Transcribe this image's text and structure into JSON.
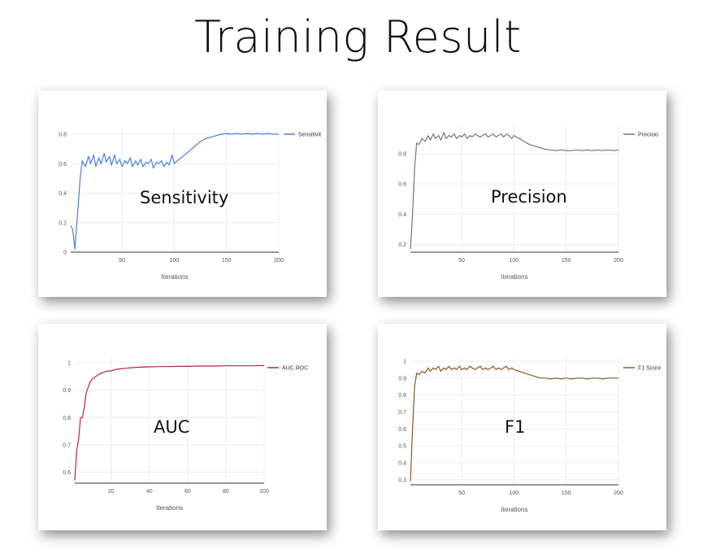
{
  "slide": {
    "title": "Training Result"
  },
  "chart_data": [
    {
      "type": "line",
      "label": "Sensitivity",
      "legend": "Sensitivit",
      "xlabel": "Iterations",
      "ylabel": "",
      "color": "#4a7fe0",
      "xlim": [
        1,
        200
      ],
      "ylim": [
        0,
        0.8
      ],
      "xticks": [
        50,
        100,
        150,
        200
      ],
      "xtick_labels": [
        "50",
        "100",
        "150",
        "200"
      ],
      "yticks": [
        0,
        0.2,
        0.4,
        0.6,
        0.8
      ],
      "ytick_labels": [
        "0",
        "0.2",
        "0.4",
        "0.6",
        "0.8"
      ],
      "x": [
        1,
        3,
        5,
        8,
        10,
        12,
        15,
        18,
        20,
        23,
        25,
        28,
        30,
        33,
        35,
        38,
        40,
        43,
        45,
        48,
        50,
        53,
        55,
        58,
        60,
        63,
        65,
        68,
        70,
        73,
        75,
        78,
        80,
        83,
        85,
        88,
        90,
        93,
        95,
        98,
        100,
        103,
        105,
        110,
        115,
        120,
        125,
        130,
        135,
        140,
        145,
        150,
        155,
        160,
        165,
        170,
        175,
        180,
        185,
        190,
        195,
        200
      ],
      "y": [
        0.18,
        0.15,
        0.02,
        0.3,
        0.5,
        0.62,
        0.58,
        0.65,
        0.6,
        0.66,
        0.58,
        0.64,
        0.6,
        0.67,
        0.61,
        0.65,
        0.59,
        0.66,
        0.6,
        0.63,
        0.58,
        0.62,
        0.6,
        0.64,
        0.58,
        0.62,
        0.59,
        0.63,
        0.58,
        0.61,
        0.6,
        0.63,
        0.57,
        0.61,
        0.6,
        0.62,
        0.58,
        0.61,
        0.59,
        0.66,
        0.6,
        0.62,
        0.63,
        0.66,
        0.69,
        0.72,
        0.75,
        0.77,
        0.78,
        0.79,
        0.8,
        0.805,
        0.8,
        0.805,
        0.8,
        0.805,
        0.8,
        0.805,
        0.8,
        0.805,
        0.8,
        0.8
      ]
    },
    {
      "type": "line",
      "label": "Precision",
      "legend": "Precisio",
      "xlabel": "Iterations",
      "ylabel": "",
      "color": "#6b7686",
      "xlim": [
        1,
        200
      ],
      "ylim": [
        0.15,
        0.95
      ],
      "xticks": [
        50,
        100,
        150,
        200
      ],
      "xtick_labels": [
        "50",
        "100",
        "150",
        "200"
      ],
      "yticks": [
        0.2,
        0.4,
        0.6,
        0.8
      ],
      "ytick_labels": [
        "0.2",
        "0.4",
        "0.6",
        "0.8"
      ],
      "x": [
        1,
        3,
        5,
        7,
        9,
        12,
        15,
        18,
        20,
        23,
        25,
        28,
        30,
        33,
        35,
        38,
        40,
        43,
        45,
        48,
        50,
        53,
        55,
        58,
        60,
        63,
        65,
        68,
        70,
        73,
        75,
        78,
        80,
        83,
        85,
        88,
        90,
        93,
        95,
        98,
        100,
        105,
        110,
        115,
        120,
        125,
        130,
        135,
        140,
        145,
        150,
        155,
        160,
        165,
        170,
        175,
        180,
        185,
        190,
        195,
        200
      ],
      "y": [
        0.17,
        0.4,
        0.7,
        0.87,
        0.86,
        0.9,
        0.88,
        0.92,
        0.89,
        0.93,
        0.9,
        0.92,
        0.89,
        0.94,
        0.9,
        0.92,
        0.91,
        0.93,
        0.9,
        0.92,
        0.91,
        0.93,
        0.9,
        0.92,
        0.91,
        0.93,
        0.92,
        0.91,
        0.92,
        0.93,
        0.91,
        0.92,
        0.93,
        0.91,
        0.92,
        0.93,
        0.91,
        0.93,
        0.92,
        0.9,
        0.92,
        0.9,
        0.88,
        0.86,
        0.85,
        0.84,
        0.83,
        0.825,
        0.82,
        0.825,
        0.82,
        0.82,
        0.825,
        0.82,
        0.825,
        0.82,
        0.825,
        0.82,
        0.825,
        0.82,
        0.825
      ]
    },
    {
      "type": "line",
      "label": "AUC",
      "legend": "AUC ROC",
      "xlabel": "Iterations",
      "ylabel": "",
      "color": "#b0264a",
      "xlim": [
        1,
        100
      ],
      "ylim": [
        0.56,
        1.0
      ],
      "xticks": [
        20,
        40,
        60,
        80,
        100
      ],
      "xtick_labels": [
        "20",
        "40",
        "60",
        "80",
        "100"
      ],
      "yticks": [
        0.6,
        0.7,
        0.8,
        0.9,
        1.0
      ],
      "ytick_labels": [
        "0.6",
        "0.7",
        "0.8",
        "0.9",
        "1"
      ],
      "x": [
        1,
        2,
        3,
        4,
        5,
        6,
        7,
        8,
        9,
        10,
        12,
        14,
        16,
        18,
        20,
        22,
        25,
        28,
        30,
        35,
        40,
        45,
        50,
        55,
        60,
        65,
        70,
        75,
        80,
        85,
        90,
        95,
        100
      ],
      "y": [
        0.57,
        0.68,
        0.72,
        0.8,
        0.8,
        0.84,
        0.89,
        0.91,
        0.93,
        0.94,
        0.95,
        0.96,
        0.965,
        0.97,
        0.97,
        0.975,
        0.978,
        0.98,
        0.982,
        0.984,
        0.985,
        0.986,
        0.986,
        0.987,
        0.987,
        0.988,
        0.988,
        0.988,
        0.989,
        0.989,
        0.989,
        0.989,
        0.99
      ]
    },
    {
      "type": "line",
      "label": "F1",
      "legend": "F1 Score",
      "xlabel": "Iterations",
      "ylabel": "",
      "color": "#8b5a24",
      "xlim": [
        1,
        200
      ],
      "ylim": [
        0.27,
        1.0
      ],
      "xticks": [
        50,
        100,
        150,
        200
      ],
      "xtick_labels": [
        "50",
        "100",
        "150",
        "200"
      ],
      "yticks": [
        0.3,
        0.4,
        0.5,
        0.6,
        0.7,
        0.8,
        0.9,
        1.0
      ],
      "ytick_labels": [
        "0.3",
        "0.4",
        "0.5",
        "0.6",
        "0.7",
        "0.8",
        "0.9",
        "1"
      ],
      "x": [
        1,
        3,
        5,
        7,
        9,
        12,
        15,
        18,
        20,
        23,
        25,
        28,
        30,
        33,
        35,
        38,
        40,
        43,
        45,
        48,
        50,
        53,
        55,
        58,
        60,
        63,
        65,
        68,
        70,
        73,
        75,
        78,
        80,
        83,
        85,
        88,
        90,
        93,
        95,
        98,
        100,
        105,
        110,
        115,
        120,
        125,
        130,
        135,
        140,
        145,
        150,
        155,
        160,
        165,
        170,
        175,
        180,
        185,
        190,
        195,
        200
      ],
      "y": [
        0.29,
        0.6,
        0.85,
        0.93,
        0.92,
        0.94,
        0.93,
        0.96,
        0.94,
        0.96,
        0.95,
        0.97,
        0.94,
        0.96,
        0.95,
        0.97,
        0.95,
        0.96,
        0.95,
        0.97,
        0.95,
        0.96,
        0.95,
        0.97,
        0.96,
        0.95,
        0.96,
        0.97,
        0.95,
        0.96,
        0.95,
        0.96,
        0.97,
        0.95,
        0.96,
        0.95,
        0.96,
        0.97,
        0.95,
        0.96,
        0.95,
        0.94,
        0.93,
        0.92,
        0.91,
        0.9,
        0.9,
        0.895,
        0.9,
        0.895,
        0.9,
        0.895,
        0.9,
        0.9,
        0.895,
        0.9,
        0.9,
        0.895,
        0.9,
        0.9,
        0.9
      ]
    }
  ]
}
